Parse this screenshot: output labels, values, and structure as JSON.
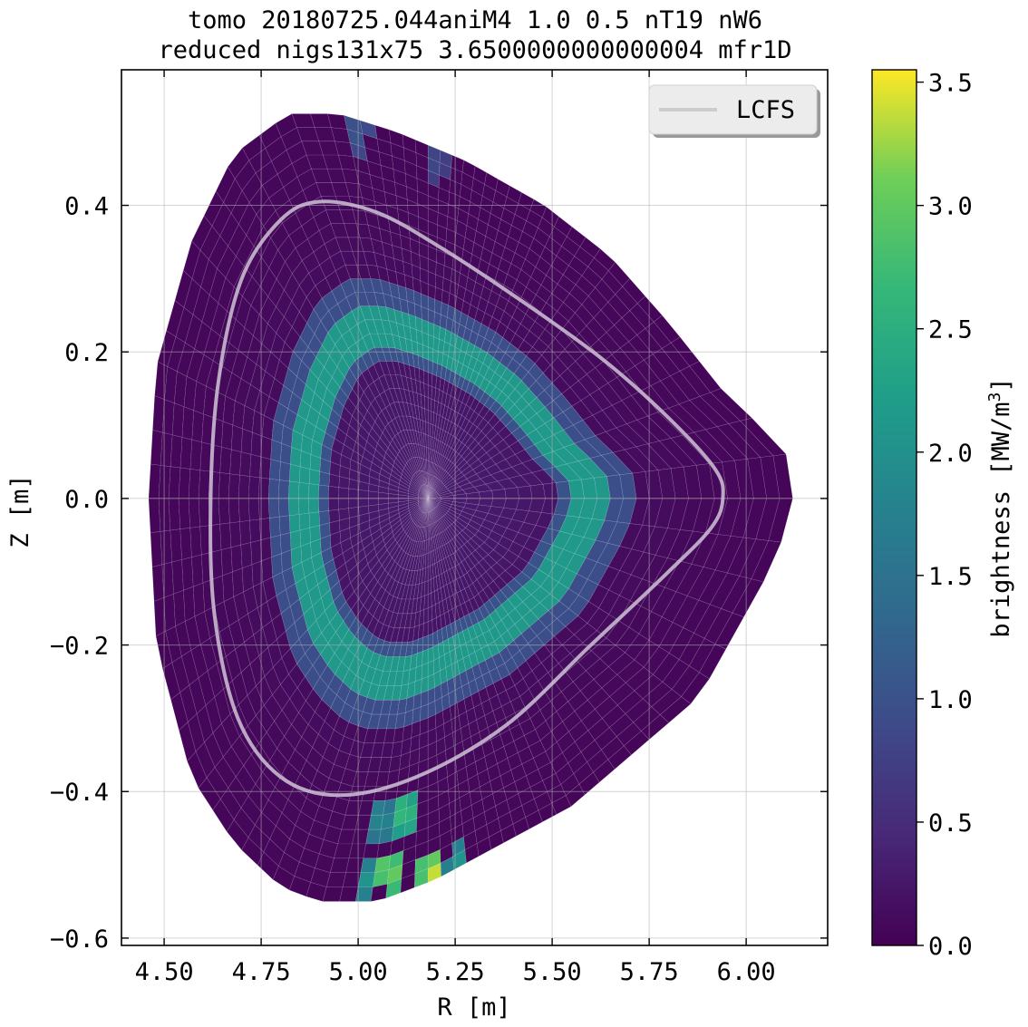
{
  "chart_data": {
    "type": "heatmap",
    "title": "tomo 20180725.044aniM4  1.0 0.5  nT19 nW6",
    "subtitle": "reduced nigs131x75 3.6500000000000004 mfr1D",
    "xlabel": "R [m]",
    "ylabel": "Z [m]",
    "xlim": [
      4.39,
      6.21
    ],
    "ylim": [
      -0.61,
      0.585
    ],
    "x_ticks": [
      4.5,
      4.75,
      5.0,
      5.25,
      5.5,
      5.75,
      6.0
    ],
    "x_tick_labels": [
      "4.50",
      "4.75",
      "5.00",
      "5.25",
      "5.50",
      "5.75",
      "6.00"
    ],
    "y_ticks": [
      -0.6,
      -0.4,
      -0.2,
      0.0,
      0.2,
      0.4
    ],
    "y_tick_labels": [
      "−0.6",
      "−0.4",
      "−0.2",
      "0.0",
      "0.2",
      "0.4"
    ],
    "grid": true,
    "legend": {
      "placement": "top-right",
      "entries": [
        {
          "label": "LCFS",
          "color": "#cccccc"
        }
      ]
    },
    "colorbar": {
      "label": "brightness [MW/m",
      "label_sup": "3",
      "label_end": "]",
      "range": [
        0.0,
        3.55
      ],
      "ticks": [
        0.0,
        0.5,
        1.0,
        1.5,
        2.0,
        2.5,
        3.0,
        3.5
      ],
      "tick_labels": [
        "0.0",
        "0.5",
        "1.0",
        "1.5",
        "2.0",
        "2.5",
        "3.0",
        "3.5"
      ],
      "colormap": "viridis"
    },
    "magnetic_axis": {
      "R": 5.18,
      "Z": 0.0
    },
    "grid_boundary": {
      "R": [
        4.82,
        4.95,
        5.1,
        5.28,
        5.48,
        5.65,
        5.8,
        5.95,
        6.1,
        6.12,
        6.08,
        5.88,
        5.55,
        5.34,
        5.2,
        5.05,
        4.9,
        4.8,
        4.68,
        4.57,
        4.48,
        4.46,
        4.48,
        4.57,
        4.68
      ],
      "Z": [
        0.525,
        0.525,
        0.5,
        0.46,
        0.4,
        0.33,
        0.24,
        0.14,
        0.07,
        0.0,
        -0.08,
        -0.27,
        -0.42,
        -0.48,
        -0.52,
        -0.55,
        -0.55,
        -0.53,
        -0.47,
        -0.38,
        -0.2,
        0.0,
        0.18,
        0.35,
        0.47
      ]
    },
    "lcfs": {
      "R": [
        4.9,
        5.05,
        5.22,
        5.42,
        5.63,
        5.8,
        5.92,
        5.94,
        5.91,
        5.8,
        5.6,
        5.38,
        5.15,
        4.95,
        4.8,
        4.69,
        4.63,
        4.62,
        4.64,
        4.7,
        4.8
      ],
      "Z": [
        0.405,
        0.39,
        0.34,
        0.27,
        0.19,
        0.11,
        0.04,
        0.0,
        -0.04,
        -0.1,
        -0.2,
        -0.31,
        -0.38,
        -0.405,
        -0.38,
        -0.3,
        -0.16,
        0.0,
        0.16,
        0.3,
        0.38
      ]
    },
    "emission_ring": {
      "rho_inner": 0.36,
      "rho_peak": 0.46,
      "rho_outer": 0.56,
      "peak_value": 1.95,
      "shoulder_value": 0.8
    },
    "hot_spots": [
      {
        "R": 5.12,
        "Z": -0.43,
        "value": 2.9
      },
      {
        "R": 5.08,
        "Z": -0.51,
        "value": 3.4
      },
      {
        "R": 5.19,
        "Z": -0.51,
        "value": 3.55
      },
      {
        "R": 5.02,
        "Z": -0.52,
        "value": 2.1
      },
      {
        "R": 5.06,
        "Z": -0.44,
        "value": 2.0
      },
      {
        "R": 5.26,
        "Z": -0.5,
        "value": 2.2
      },
      {
        "R": 5.0,
        "Z": 0.5,
        "value": 1.1
      },
      {
        "R": 5.2,
        "Z": 0.46,
        "value": 0.9
      }
    ]
  }
}
